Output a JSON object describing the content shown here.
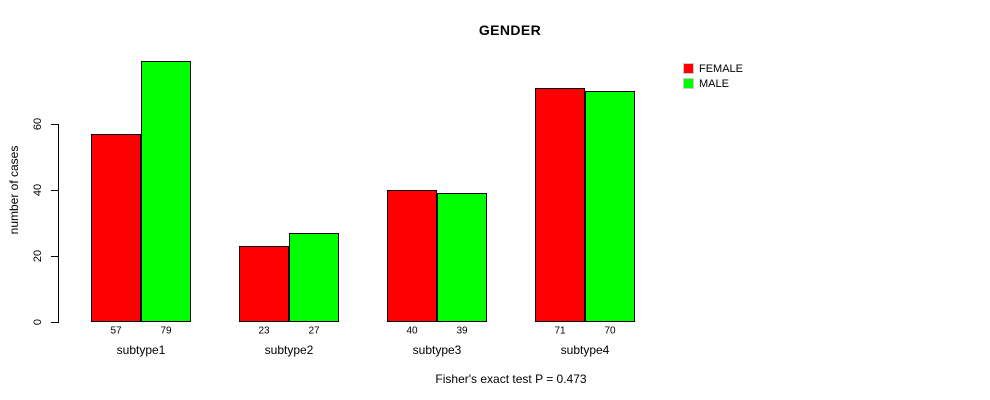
{
  "title": "GENDER",
  "ylabel": "number of cases",
  "caption": "Fisher's exact test P = 0.473",
  "legend": [
    {
      "label": "FEMALE",
      "color": "#ff0000"
    },
    {
      "label": "MALE",
      "color": "#00ff00"
    }
  ],
  "colors": {
    "female": "#ff0000",
    "male": "#00ff00",
    "bar_border": "#000000",
    "axis": "#000000",
    "background": "#ffffff"
  },
  "chart_data": {
    "type": "bar",
    "title": "GENDER",
    "xlabel": "",
    "ylabel": "number of cases",
    "categories": [
      "subtype1",
      "subtype2",
      "subtype3",
      "subtype4"
    ],
    "series": [
      {
        "name": "FEMALE",
        "color": "#ff0000",
        "values": [
          57,
          23,
          40,
          71
        ]
      },
      {
        "name": "MALE",
        "color": "#00ff00",
        "values": [
          79,
          27,
          39,
          70
        ]
      }
    ],
    "bar_value_labels": [
      [
        "57",
        "79"
      ],
      [
        "23",
        "27"
      ],
      [
        "40",
        "39"
      ],
      [
        "71",
        "70"
      ]
    ],
    "yticks": [
      0,
      20,
      40,
      60
    ],
    "ylim": [
      0,
      79.4
    ],
    "grid": false,
    "legend_position": "top-right",
    "annotation": "Fisher's exact test P = 0.473"
  }
}
